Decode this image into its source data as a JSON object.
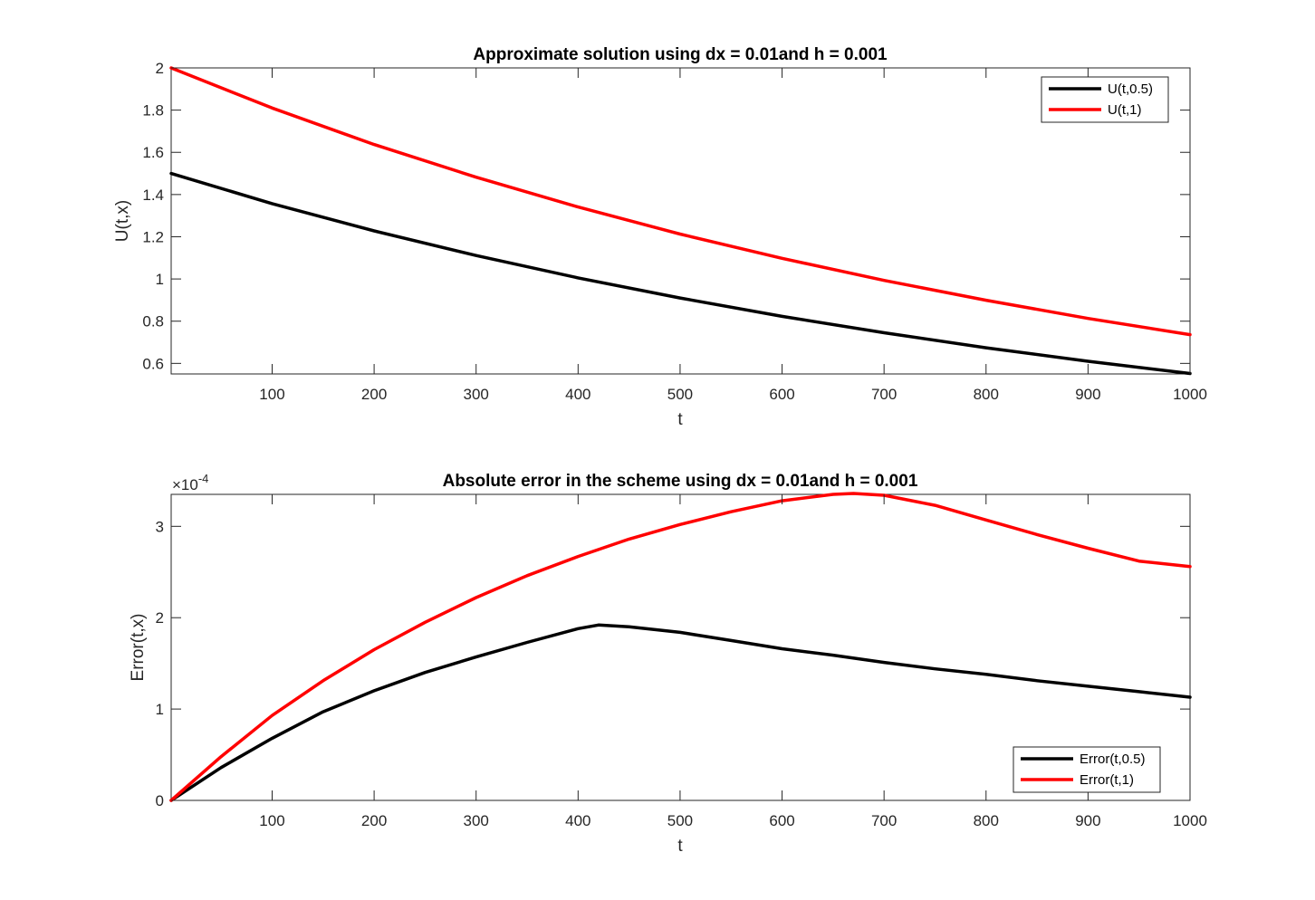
{
  "chart_data": [
    {
      "type": "line",
      "title": "Approximate solution using dx = 0.01and h = 0.001",
      "xlabel": "t",
      "ylabel": "U(t,x)",
      "xlim": [
        1,
        1000
      ],
      "ylim": [
        0.55,
        2
      ],
      "xticks": [
        100,
        200,
        300,
        400,
        500,
        600,
        700,
        800,
        900,
        1000
      ],
      "yticks": [
        0.6,
        0.8,
        1,
        1.2,
        1.4,
        1.6,
        1.8,
        2
      ],
      "ytick_labels": [
        "0.6",
        "0.8",
        "1",
        "1.2",
        "1.4",
        "1.6",
        "1.8",
        "2"
      ],
      "exponent_label": "",
      "grid": false,
      "legend_position": "top-right",
      "series": [
        {
          "name": "U(t,0.5)",
          "color": "#000000",
          "x": [
            1,
            100,
            200,
            300,
            400,
            500,
            600,
            700,
            800,
            900,
            1000
          ],
          "y": [
            1.5,
            1.357,
            1.228,
            1.111,
            1.005,
            0.91,
            0.823,
            0.745,
            0.674,
            0.61,
            0.552
          ]
        },
        {
          "name": "U(t,1)",
          "color": "#ff0000",
          "x": [
            1,
            100,
            200,
            300,
            400,
            500,
            600,
            700,
            800,
            900,
            1000
          ],
          "y": [
            2.0,
            1.81,
            1.637,
            1.482,
            1.341,
            1.213,
            1.098,
            0.993,
            0.899,
            0.813,
            0.736
          ]
        }
      ]
    },
    {
      "type": "line",
      "title": "Absolute error in the scheme using dx = 0.01and h = 0.001",
      "xlabel": "t",
      "ylabel": "Error(t,x)",
      "xlim": [
        1,
        1000
      ],
      "ylim": [
        0,
        3.35
      ],
      "xticks": [
        100,
        200,
        300,
        400,
        500,
        600,
        700,
        800,
        900,
        1000
      ],
      "yticks": [
        0,
        1,
        2,
        3
      ],
      "ytick_labels": [
        "0",
        "1",
        "2",
        "3"
      ],
      "exponent_label": "×10",
      "exponent_power": "-4",
      "y_scale_note": "values ×10^-4",
      "grid": false,
      "legend_position": "bottom-right",
      "series": [
        {
          "name": "Error(t,0.5)",
          "color": "#000000",
          "x": [
            1,
            50,
            100,
            150,
            200,
            250,
            300,
            350,
            400,
            420,
            450,
            500,
            550,
            600,
            650,
            700,
            750,
            800,
            850,
            900,
            950,
            1000
          ],
          "y": [
            0,
            0.36,
            0.68,
            0.97,
            1.2,
            1.4,
            1.57,
            1.73,
            1.88,
            1.92,
            1.9,
            1.84,
            1.75,
            1.66,
            1.59,
            1.51,
            1.44,
            1.38,
            1.31,
            1.25,
            1.19,
            1.13
          ]
        },
        {
          "name": "Error(t,1)",
          "color": "#ff0000",
          "x": [
            1,
            50,
            100,
            150,
            200,
            250,
            300,
            350,
            400,
            450,
            500,
            550,
            600,
            650,
            670,
            700,
            750,
            800,
            850,
            900,
            950,
            1000
          ],
          "y": [
            0,
            0.48,
            0.93,
            1.31,
            1.65,
            1.95,
            2.22,
            2.46,
            2.67,
            2.86,
            3.02,
            3.16,
            3.28,
            3.35,
            3.36,
            3.34,
            3.23,
            3.07,
            2.91,
            2.76,
            2.62,
            2.56
          ]
        }
      ]
    }
  ]
}
